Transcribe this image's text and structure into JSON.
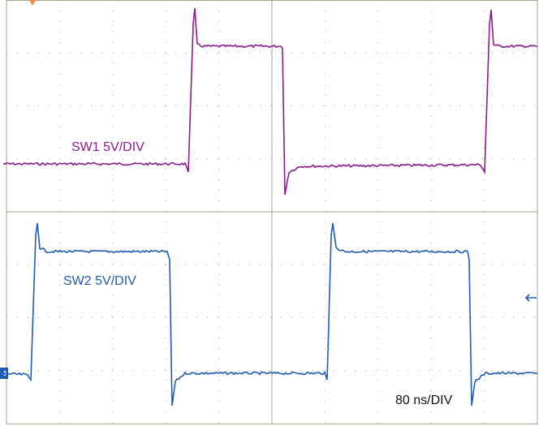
{
  "traces": [
    {
      "label": "SW1 5V/DIV",
      "color": "#8b1a8f"
    },
    {
      "label": "SW2 5V/DIV",
      "color": "#1f5cb8"
    }
  ],
  "timebase": "80 ns/DIV"
}
